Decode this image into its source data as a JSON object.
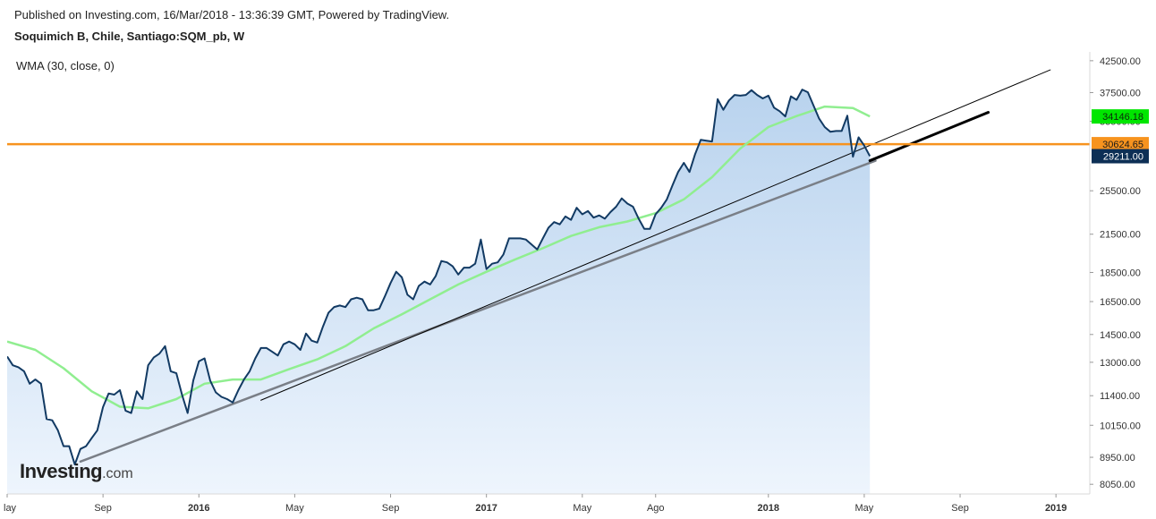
{
  "header": {
    "published": "Published on Investing.com, 16/Mar/2018 - 13:36:39 GMT, Powered by TradingView.",
    "symbol": "Soquimich B, Chile, Santiago:SQM_pb, W",
    "indicator": "WMA (30, close, 0)"
  },
  "logo": {
    "main": "Investing",
    "suffix": ".com"
  },
  "colors": {
    "price_line": "#123a63",
    "area_top": "#b9d3ee",
    "area_bottom": "#eef5fd",
    "wma": "#90ee90",
    "wma_badge": "#00e600",
    "horizontal": "#f7931e",
    "last_badge": "#0d2f55",
    "trend": "#7a7f87"
  },
  "chart_data": {
    "type": "line",
    "x_axis_labels": [
      {
        "label": "lay",
        "bold": false
      },
      {
        "label": "Sep",
        "bold": false
      },
      {
        "label": "2016",
        "bold": true
      },
      {
        "label": "May",
        "bold": false
      },
      {
        "label": "Sep",
        "bold": false
      },
      {
        "label": "2017",
        "bold": true
      },
      {
        "label": "May",
        "bold": false
      },
      {
        "label": "Ago",
        "bold": false
      },
      {
        "label": "2018",
        "bold": true
      },
      {
        "label": "May",
        "bold": false
      },
      {
        "label": "Sep",
        "bold": false
      },
      {
        "label": "2019",
        "bold": true
      }
    ],
    "x_axis_label_weeks": [
      0,
      17,
      34,
      51,
      68,
      85,
      102,
      115,
      135,
      152,
      169,
      186
    ],
    "y_axis_ticks": [
      {
        "value": 42500,
        "label": "42500.00"
      },
      {
        "value": 37500,
        "label": "37500.00"
      },
      {
        "value": 33500,
        "label": "33500.00"
      },
      {
        "value": 25500,
        "label": "25500.00"
      },
      {
        "value": 21500,
        "label": "21500.00"
      },
      {
        "value": 18500,
        "label": "18500.00"
      },
      {
        "value": 16500,
        "label": "16500.00"
      },
      {
        "value": 14500,
        "label": "14500.00"
      },
      {
        "value": 13000,
        "label": "13000.00"
      },
      {
        "value": 11400,
        "label": "11400.00"
      },
      {
        "value": 10150,
        "label": "10150.00"
      },
      {
        "value": 8950,
        "label": "8950.00"
      },
      {
        "value": 8050,
        "label": "8050.00"
      }
    ],
    "y_scale": "log",
    "y_range": [
      7750,
      44000
    ],
    "week_range": [
      0,
      192
    ],
    "series": [
      {
        "name": "Soquimich B",
        "style": "area",
        "points": [
          [
            0,
            13300
          ],
          [
            1,
            12850
          ],
          [
            2,
            12750
          ],
          [
            3,
            12550
          ],
          [
            4,
            11950
          ],
          [
            5,
            12150
          ],
          [
            6,
            11950
          ],
          [
            7,
            10400
          ],
          [
            8,
            10350
          ],
          [
            9,
            9950
          ],
          [
            10,
            9350
          ],
          [
            11,
            9350
          ],
          [
            12,
            8700
          ],
          [
            13,
            9250
          ],
          [
            14,
            9350
          ],
          [
            15,
            9650
          ],
          [
            16,
            9950
          ],
          [
            17,
            10900
          ],
          [
            18,
            11500
          ],
          [
            19,
            11450
          ],
          [
            20,
            11650
          ],
          [
            21,
            10750
          ],
          [
            22,
            10650
          ],
          [
            23,
            11600
          ],
          [
            24,
            11250
          ],
          [
            25,
            12850
          ],
          [
            26,
            13250
          ],
          [
            27,
            13450
          ],
          [
            28,
            13850
          ],
          [
            29,
            12550
          ],
          [
            30,
            12450
          ],
          [
            31,
            11450
          ],
          [
            32,
            10650
          ],
          [
            33,
            12100
          ],
          [
            34,
            13050
          ],
          [
            35,
            13200
          ],
          [
            36,
            12100
          ],
          [
            37,
            11550
          ],
          [
            38,
            11350
          ],
          [
            39,
            11250
          ],
          [
            40,
            11100
          ],
          [
            41,
            11650
          ],
          [
            42,
            12150
          ],
          [
            43,
            12550
          ],
          [
            44,
            13200
          ],
          [
            45,
            13750
          ],
          [
            46,
            13750
          ],
          [
            47,
            13550
          ],
          [
            48,
            13350
          ],
          [
            49,
            13950
          ],
          [
            50,
            14100
          ],
          [
            51,
            13950
          ],
          [
            52,
            13650
          ],
          [
            53,
            14550
          ],
          [
            54,
            14150
          ],
          [
            55,
            14050
          ],
          [
            56,
            14950
          ],
          [
            57,
            15800
          ],
          [
            58,
            16150
          ],
          [
            59,
            16250
          ],
          [
            60,
            16150
          ],
          [
            61,
            16650
          ],
          [
            62,
            16750
          ],
          [
            63,
            16650
          ],
          [
            64,
            15950
          ],
          [
            65,
            15950
          ],
          [
            66,
            16050
          ],
          [
            67,
            16850
          ],
          [
            68,
            17750
          ],
          [
            69,
            18550
          ],
          [
            70,
            18150
          ],
          [
            71,
            16950
          ],
          [
            72,
            16650
          ],
          [
            73,
            17550
          ],
          [
            74,
            17850
          ],
          [
            75,
            17650
          ],
          [
            76,
            18250
          ],
          [
            77,
            19350
          ],
          [
            78,
            19250
          ],
          [
            79,
            18950
          ],
          [
            80,
            18350
          ],
          [
            81,
            18850
          ],
          [
            82,
            18850
          ],
          [
            83,
            19150
          ],
          [
            84,
            21050
          ],
          [
            85,
            18750
          ],
          [
            86,
            19150
          ],
          [
            87,
            19250
          ],
          [
            88,
            19850
          ],
          [
            89,
            21150
          ],
          [
            90,
            21150
          ],
          [
            91,
            21150
          ],
          [
            92,
            21050
          ],
          [
            93,
            20650
          ],
          [
            94,
            20250
          ],
          [
            95,
            21150
          ],
          [
            96,
            22050
          ],
          [
            97,
            22550
          ],
          [
            98,
            22350
          ],
          [
            99,
            23050
          ],
          [
            100,
            22750
          ],
          [
            101,
            23850
          ],
          [
            102,
            23250
          ],
          [
            103,
            23550
          ],
          [
            104,
            22950
          ],
          [
            105,
            23150
          ],
          [
            106,
            22850
          ],
          [
            107,
            23450
          ],
          [
            108,
            23950
          ],
          [
            109,
            24750
          ],
          [
            110,
            24250
          ],
          [
            111,
            23950
          ],
          [
            112,
            22850
          ],
          [
            113,
            21950
          ],
          [
            114,
            21950
          ],
          [
            115,
            23250
          ],
          [
            116,
            23850
          ],
          [
            117,
            24650
          ],
          [
            118,
            26050
          ],
          [
            119,
            27450
          ],
          [
            120,
            28450
          ],
          [
            121,
            27450
          ],
          [
            122,
            29450
          ],
          [
            123,
            31150
          ],
          [
            124,
            31050
          ],
          [
            125,
            30950
          ],
          [
            126,
            36550
          ],
          [
            127,
            35050
          ],
          [
            128,
            36350
          ],
          [
            129,
            37150
          ],
          [
            130,
            37050
          ],
          [
            131,
            37150
          ],
          [
            132,
            37850
          ],
          [
            133,
            37150
          ],
          [
            134,
            36650
          ],
          [
            135,
            37050
          ],
          [
            136,
            35350
          ],
          [
            137,
            34850
          ],
          [
            138,
            34150
          ],
          [
            139,
            36950
          ],
          [
            140,
            36450
          ],
          [
            141,
            37950
          ],
          [
            142,
            37550
          ],
          [
            143,
            35650
          ],
          [
            144,
            33850
          ],
          [
            145,
            32750
          ],
          [
            146,
            32150
          ],
          [
            147,
            32250
          ],
          [
            148,
            32250
          ],
          [
            149,
            34250
          ],
          [
            150,
            29150
          ],
          [
            151,
            31450
          ],
          [
            152,
            30450
          ],
          [
            153,
            29211
          ]
        ]
      },
      {
        "name": "WMA (30, close, 0)",
        "style": "line",
        "points": [
          [
            0,
            14100
          ],
          [
            5,
            13650
          ],
          [
            10,
            12700
          ],
          [
            15,
            11600
          ],
          [
            20,
            10920
          ],
          [
            25,
            10850
          ],
          [
            30,
            11250
          ],
          [
            35,
            11950
          ],
          [
            40,
            12150
          ],
          [
            45,
            12150
          ],
          [
            50,
            12650
          ],
          [
            55,
            13150
          ],
          [
            60,
            13850
          ],
          [
            65,
            14850
          ],
          [
            70,
            15700
          ],
          [
            75,
            16650
          ],
          [
            80,
            17650
          ],
          [
            85,
            18550
          ],
          [
            90,
            19450
          ],
          [
            95,
            20350
          ],
          [
            100,
            21350
          ],
          [
            105,
            22100
          ],
          [
            110,
            22600
          ],
          [
            115,
            23350
          ],
          [
            120,
            24650
          ],
          [
            125,
            26900
          ],
          [
            130,
            30100
          ],
          [
            135,
            32750
          ],
          [
            140,
            34200
          ],
          [
            145,
            35500
          ],
          [
            150,
            35300
          ],
          [
            153,
            34146
          ]
        ]
      }
    ],
    "trend_lines": [
      {
        "name": "support",
        "from": [
          13,
          8800
        ],
        "to": [
          154,
          28700
        ],
        "width": 2.5,
        "color": "#7a7f87"
      },
      {
        "name": "support-extension",
        "from": [
          153,
          28700
        ],
        "to": [
          174,
          34700
        ],
        "width": 3,
        "color": "#000000"
      },
      {
        "name": "upper-channel",
        "from": [
          45,
          11200
        ],
        "to": [
          185,
          41000
        ],
        "width": 1,
        "color": "#000000"
      }
    ],
    "horizontal_line": {
      "value": 30624.65
    },
    "value_badges": [
      {
        "label": "34146.18",
        "value": 34146.18,
        "kind": "wma"
      },
      {
        "label": "30624.65",
        "value": 30624.65,
        "kind": "horizontal"
      },
      {
        "label": "29211.00",
        "value": 29211.0,
        "kind": "last"
      }
    ]
  }
}
